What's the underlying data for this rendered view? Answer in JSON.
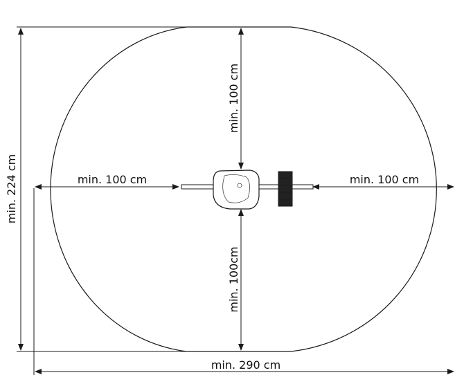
{
  "diagram": {
    "labels": {
      "top_vertical": "min. 100 cm",
      "bottom_vertical": "min. 100cm",
      "left_horizontal": "min. 100 cm",
      "right_horizontal": "min. 100 cm",
      "total_height": "min. 224 cm",
      "total_width": "min. 290 cm"
    },
    "colors": {
      "line": "#1a1a1a",
      "background": "#ffffff",
      "equipment_fill": "#ffffff",
      "equipment_dark": "#222222"
    }
  }
}
